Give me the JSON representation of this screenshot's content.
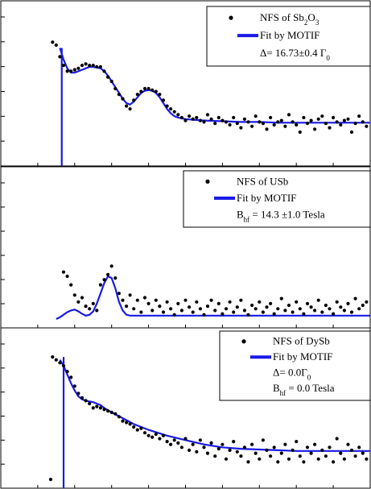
{
  "colors": {
    "fit": "#1a1ae6",
    "points": "#000000",
    "frame": "#000000"
  },
  "chart_data": [
    {
      "type": "scatter",
      "xlim": [
        0,
        100
      ],
      "ylim": [
        0,
        100
      ],
      "legend": {
        "position": "top-right",
        "entries": [
          {
            "marker": "dot",
            "text": "NFS of Sb",
            "sub1": "2",
            "text2": "O",
            "sub2": "3"
          },
          {
            "marker": "line",
            "text": "Fit by MOTIF"
          },
          {
            "marker": "none",
            "text": "Δ= 16.73±0.4 Γ",
            "sub1": "0"
          }
        ]
      },
      "series": [
        {
          "kind": "points",
          "x": [
            14,
            15,
            16,
            17,
            18,
            19,
            20,
            21,
            22,
            23,
            24,
            25,
            26,
            27,
            28,
            29,
            30,
            31,
            32,
            33,
            34,
            35,
            36,
            37,
            38,
            39,
            40,
            41,
            42,
            43,
            44,
            45,
            46,
            47,
            48,
            49,
            50,
            51,
            52,
            53,
            54,
            55,
            56,
            57,
            58,
            59,
            60,
            61,
            62,
            63,
            64,
            65,
            66,
            67,
            68,
            69,
            70,
            71,
            72,
            73,
            74,
            75,
            76,
            77,
            78,
            79,
            80,
            81,
            82,
            83,
            84,
            85,
            86,
            87,
            88,
            89,
            90,
            91,
            92,
            93,
            94,
            95,
            96,
            97,
            98,
            99
          ],
          "y": [
            82,
            80,
            72,
            66,
            62,
            62,
            63,
            64,
            66,
            67,
            66,
            66,
            65,
            65,
            62,
            58,
            55,
            50,
            46,
            43,
            38,
            36,
            42,
            46,
            48,
            50,
            50,
            49,
            48,
            46,
            42,
            38,
            36,
            34,
            32,
            30,
            28,
            31,
            29,
            30,
            28,
            27,
            32,
            29,
            26,
            30,
            28,
            27,
            25,
            30,
            26,
            23,
            29,
            27,
            24,
            31,
            27,
            26,
            22,
            30,
            25,
            27,
            28,
            24,
            32,
            27,
            25,
            20,
            30,
            26,
            28,
            22,
            29,
            31,
            26,
            23,
            30,
            27,
            25,
            28,
            29,
            20,
            26,
            31,
            27,
            24
          ]
        },
        {
          "kind": "line",
          "x": [
            16,
            17,
            18,
            19,
            20,
            21,
            22,
            23,
            24,
            25,
            26,
            27,
            28,
            29,
            30,
            31,
            32,
            33,
            34,
            35,
            36,
            37,
            38,
            39,
            40,
            41,
            42,
            43,
            44,
            45,
            46,
            47,
            48,
            49,
            50,
            52,
            55,
            60,
            65,
            70,
            75,
            80,
            85,
            90,
            95,
            100
          ],
          "y": [
            78,
            70,
            64,
            61,
            61,
            62,
            63,
            64,
            65,
            65,
            64.5,
            64,
            62,
            59,
            55,
            51,
            47,
            43,
            40,
            39,
            41,
            44,
            47,
            48.5,
            49,
            48.5,
            47,
            44,
            40,
            36,
            33,
            31,
            30,
            29.5,
            29,
            28.5,
            28,
            27.5,
            27,
            27,
            26.5,
            26.5,
            26.5,
            26.5,
            26.5,
            26.5
          ]
        }
      ],
      "prompt_drop": {
        "x": 16.5,
        "y_from": 78,
        "y_to": -5
      }
    },
    {
      "type": "scatter",
      "xlim": [
        0,
        100
      ],
      "ylim": [
        0,
        100
      ],
      "legend": {
        "position": "top-right",
        "entries": [
          {
            "marker": "dot",
            "text": "NFS of USb"
          },
          {
            "marker": "line",
            "text": "Fit by MOTIF"
          },
          {
            "marker": "none",
            "text": "B",
            "sub1": "hf",
            "text2": " = 14.3 ±1.0 Tesla"
          }
        ]
      },
      "series": [
        {
          "kind": "points",
          "x": [
            17,
            18,
            19,
            20,
            21,
            22,
            23,
            24,
            25,
            26,
            27,
            28,
            29,
            30,
            31,
            32,
            33,
            34,
            35,
            36,
            37,
            38,
            39,
            40,
            41,
            42,
            43,
            44,
            45,
            46,
            47,
            48,
            49,
            50,
            51,
            52,
            53,
            54,
            55,
            56,
            57,
            58,
            59,
            60,
            61,
            62,
            63,
            64,
            65,
            66,
            67,
            68,
            69,
            70,
            71,
            72,
            73,
            74,
            75,
            76,
            77,
            78,
            79,
            80,
            81,
            82,
            83,
            84,
            85,
            86,
            87,
            88,
            89,
            90,
            91,
            92,
            93,
            94,
            95,
            96,
            97,
            98,
            99
          ],
          "y": [
            55,
            50,
            40,
            28,
            20,
            25,
            15,
            12,
            18,
            10,
            40,
            46,
            52,
            62,
            48,
            30,
            22,
            15,
            28,
            12,
            22,
            8,
            25,
            18,
            10,
            22,
            15,
            8,
            20,
            12,
            5,
            18,
            10,
            22,
            14,
            8,
            20,
            12,
            5,
            15,
            22,
            10,
            18,
            6,
            12,
            20,
            8,
            14,
            22,
            10,
            5,
            16,
            12,
            20,
            8,
            14,
            18,
            6,
            12,
            24,
            10,
            16,
            8,
            20,
            12,
            6,
            18,
            14,
            10,
            22,
            8,
            16,
            12,
            6,
            20,
            14,
            10,
            18,
            8,
            24,
            12,
            16,
            20
          ],
          "note": "y as percent of panel height above baseline"
        },
        {
          "kind": "line",
          "x": [
            15,
            16,
            17,
            18,
            19,
            20,
            21,
            22,
            23,
            24,
            25,
            26,
            27,
            28,
            29,
            30,
            31,
            32,
            33,
            34,
            35,
            40,
            50,
            60,
            70,
            80,
            90,
            100
          ],
          "y": [
            0,
            2,
            5,
            8,
            10,
            11,
            9,
            6,
            4,
            5,
            9,
            18,
            30,
            42,
            50,
            48,
            36,
            20,
            10,
            5,
            4,
            4,
            4,
            4,
            4,
            4,
            4,
            4
          ]
        }
      ]
    },
    {
      "type": "scatter",
      "xlim": [
        0,
        100
      ],
      "ylim": [
        0,
        100
      ],
      "legend": {
        "position": "top-right",
        "entries": [
          {
            "marker": "dot",
            "text": "NFS of DySb"
          },
          {
            "marker": "line",
            "text": "Fit by MOTIF"
          },
          {
            "marker": "none",
            "text": "Δ= 0.0Γ",
            "sub1": "0"
          },
          {
            "marker": "none",
            "text": "B",
            "sub1": "hf",
            "text2": " = 0.0 Tesla"
          }
        ]
      },
      "series": [
        {
          "kind": "points",
          "x": [
            14,
            15,
            16,
            17,
            18,
            19,
            20,
            21,
            22,
            23,
            24,
            25,
            26,
            27,
            28,
            29,
            30,
            31,
            32,
            33,
            34,
            35,
            36,
            37,
            38,
            39,
            40,
            41,
            42,
            43,
            44,
            45,
            46,
            47,
            48,
            49,
            50,
            51,
            52,
            53,
            54,
            55,
            56,
            57,
            58,
            59,
            60,
            61,
            62,
            63,
            64,
            65,
            66,
            67,
            68,
            69,
            70,
            71,
            72,
            73,
            74,
            75,
            76,
            77,
            78,
            79,
            80,
            81,
            82,
            83,
            84,
            85,
            86,
            87,
            88,
            89,
            90,
            91,
            92,
            93,
            94,
            95,
            96,
            97,
            98,
            99
          ],
          "y": [
            90,
            88,
            86,
            84,
            80,
            76,
            70,
            65,
            62,
            60,
            58,
            55,
            56,
            55,
            54,
            53,
            52,
            51,
            49,
            46,
            45,
            44,
            42,
            40,
            41,
            38,
            36,
            35,
            37,
            34,
            36,
            32,
            30,
            33,
            31,
            28,
            34,
            26,
            30,
            25,
            33,
            28,
            24,
            31,
            22,
            27,
            30,
            20,
            26,
            32,
            25,
            22,
            28,
            18,
            30,
            24,
            20,
            33,
            26,
            22,
            28,
            18,
            24,
            30,
            20,
            26,
            32,
            22,
            18,
            28,
            24,
            30,
            20,
            26,
            22,
            28,
            18,
            34,
            24,
            20,
            30,
            26,
            22,
            28,
            24,
            20
          ]
        },
        {
          "kind": "line",
          "x": [
            16,
            17,
            18,
            19,
            20,
            21,
            22,
            23,
            24,
            25,
            26,
            27,
            28,
            30,
            33,
            36,
            40,
            45,
            50,
            55,
            60,
            65,
            70,
            75,
            80,
            85,
            90,
            95,
            100
          ],
          "y": [
            88,
            84,
            78,
            72,
            67,
            63,
            61,
            60,
            59.5,
            59,
            58,
            57,
            55,
            52,
            48,
            44,
            40,
            36,
            33,
            30,
            28,
            27,
            26.5,
            26,
            25.5,
            25.5,
            25.5,
            25.5,
            25.5
          ]
        }
      ],
      "outlier": {
        "x": 13.5,
        "y": 6
      },
      "prompt_drop": {
        "x": 17,
        "y_from": 90,
        "y_to": -5
      }
    }
  ]
}
